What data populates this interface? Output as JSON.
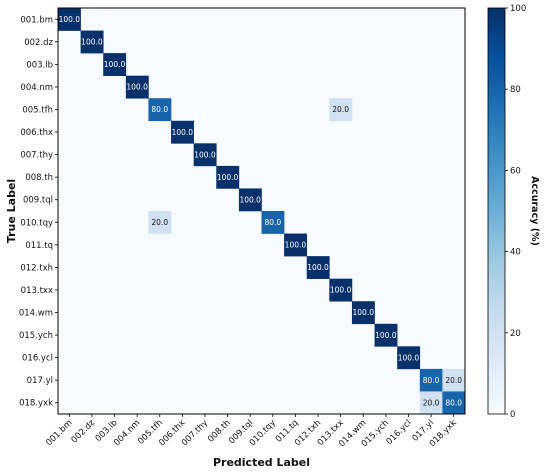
{
  "chart_data": {
    "type": "heatmap",
    "xlabel": "Predicted Label",
    "ylabel": "True Label",
    "colorbar_label": "Accuracy (%)",
    "colorbar_range": [
      0,
      100
    ],
    "colorbar_ticks": [
      "0",
      "20",
      "40",
      "60",
      "80",
      "100"
    ],
    "categories": [
      "001.bm",
      "002.dz",
      "003.lb",
      "004.nm",
      "005.tfh",
      "006.thx",
      "007.thy",
      "008.th",
      "009.tql",
      "010.tqy",
      "011.tq",
      "012.txh",
      "013.txx",
      "014.wm",
      "015.ych",
      "016.ycl",
      "017.yl",
      "018.yxk"
    ],
    "cells": [
      {
        "row": 0,
        "col": 0,
        "value": 100,
        "label": "100.0"
      },
      {
        "row": 1,
        "col": 1,
        "value": 100,
        "label": "100.0"
      },
      {
        "row": 2,
        "col": 2,
        "value": 100,
        "label": "100.0"
      },
      {
        "row": 3,
        "col": 3,
        "value": 100,
        "label": "100.0"
      },
      {
        "row": 4,
        "col": 4,
        "value": 80,
        "label": "80.0"
      },
      {
        "row": 4,
        "col": 12,
        "value": 20,
        "label": "20.0"
      },
      {
        "row": 5,
        "col": 5,
        "value": 100,
        "label": "100.0"
      },
      {
        "row": 6,
        "col": 6,
        "value": 100,
        "label": "100.0"
      },
      {
        "row": 7,
        "col": 7,
        "value": 100,
        "label": "100.0"
      },
      {
        "row": 8,
        "col": 8,
        "value": 100,
        "label": "100.0"
      },
      {
        "row": 9,
        "col": 4,
        "value": 20,
        "label": "20.0"
      },
      {
        "row": 9,
        "col": 9,
        "value": 80,
        "label": "80.0"
      },
      {
        "row": 10,
        "col": 10,
        "value": 100,
        "label": "100.0"
      },
      {
        "row": 11,
        "col": 11,
        "value": 100,
        "label": "100.0"
      },
      {
        "row": 12,
        "col": 12,
        "value": 100,
        "label": "100.0"
      },
      {
        "row": 13,
        "col": 13,
        "value": 100,
        "label": "100.0"
      },
      {
        "row": 14,
        "col": 14,
        "value": 100,
        "label": "100.0"
      },
      {
        "row": 15,
        "col": 15,
        "value": 100,
        "label": "100.0"
      },
      {
        "row": 16,
        "col": 16,
        "value": 80,
        "label": "80.0"
      },
      {
        "row": 16,
        "col": 17,
        "value": 20,
        "label": "20.0"
      },
      {
        "row": 17,
        "col": 16,
        "value": 20,
        "label": "20.0"
      },
      {
        "row": 17,
        "col": 17,
        "value": 80,
        "label": "80.0"
      }
    ],
    "colormap": "Blues",
    "colors": {
      "zero": "#f7fbff",
      "twenty": "#c6dbef",
      "eighty": "#2171b5",
      "hundred": "#08306b"
    }
  }
}
